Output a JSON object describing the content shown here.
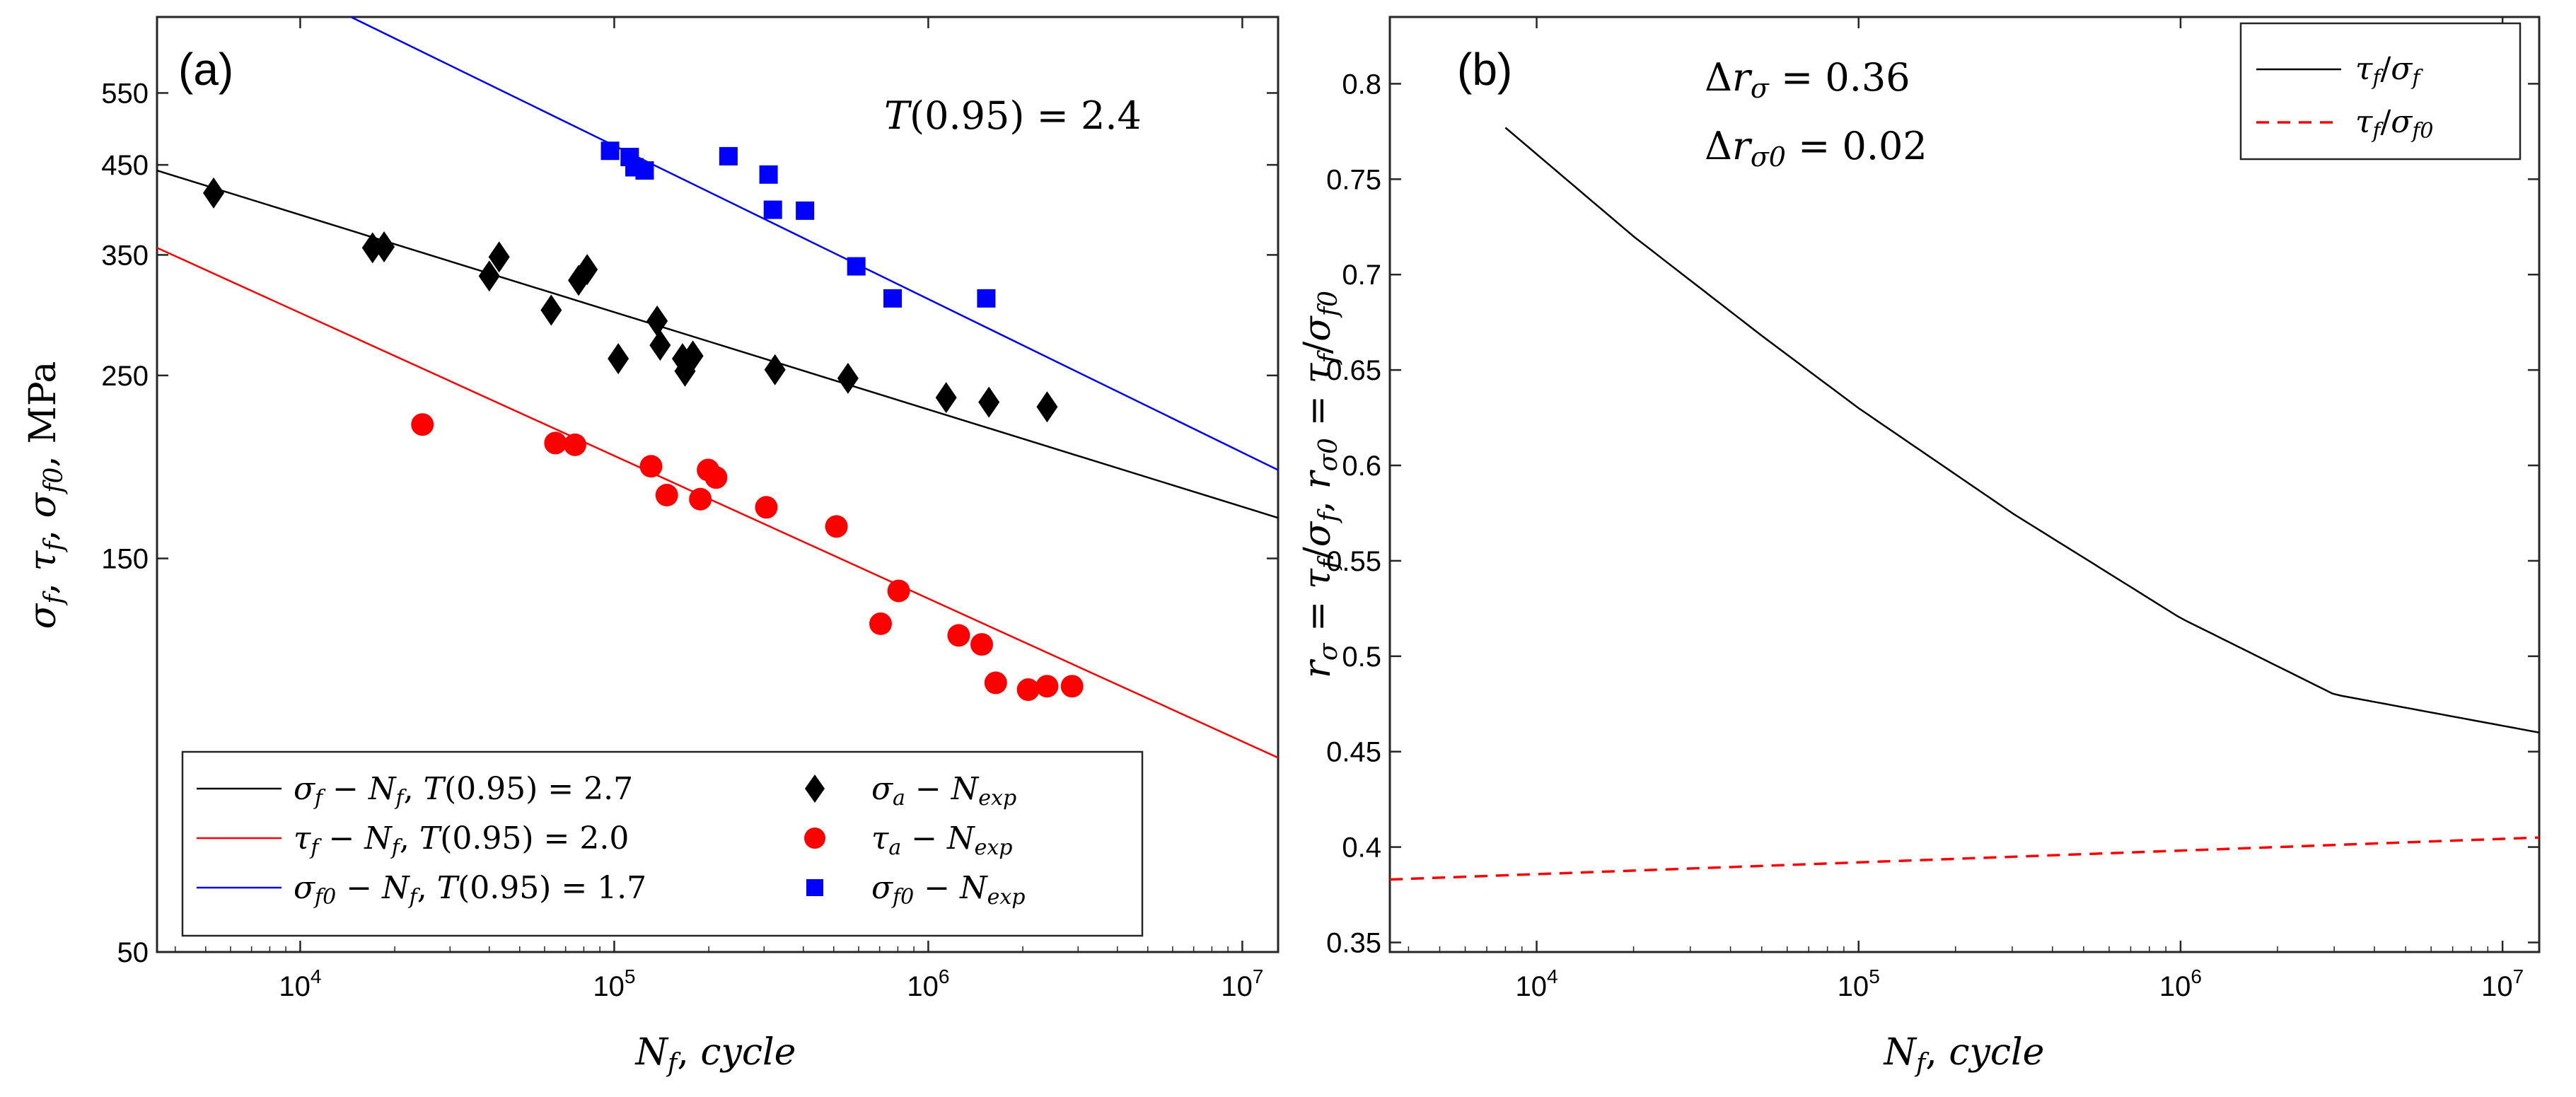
{
  "chart_data": [
    {
      "type": "scatter",
      "panel_label": "(a)",
      "xscale": "log",
      "yscale": "log",
      "xlim": [
        3500,
        13000000
      ],
      "ylim": [
        50,
        680
      ],
      "xlabel": "N_f, cycle",
      "ylabel": "σ_f, τ_f, σ_f0, MPa",
      "xticks": [
        10000,
        100000,
        1000000,
        10000000
      ],
      "xtick_labels": [
        {
          "base": "10",
          "exp": "4"
        },
        {
          "base": "10",
          "exp": "5"
        },
        {
          "base": "10",
          "exp": "6"
        },
        {
          "base": "10",
          "exp": "7"
        }
      ],
      "yticks": [
        50,
        150,
        250,
        350,
        450,
        550
      ],
      "ytick_labels": [
        "50",
        "150",
        "250",
        "350",
        "450",
        "550"
      ],
      "annotation": "T(0.95) = 2.4",
      "legend_position": "lower-left",
      "legend": [
        {
          "label": "σ_f − N_f, T(0.95) = 2.7",
          "color": "#000000",
          "marker": "line"
        },
        {
          "label": "σ_a − N_exp",
          "color": "#000000",
          "marker": "diamond"
        },
        {
          "label": "τ_f − N_f, T(0.95) = 2.0",
          "color": "#ff0000",
          "marker": "line"
        },
        {
          "label": "τ_a − N_exp",
          "color": "#ff0000",
          "marker": "circle"
        },
        {
          "label": "σ_f0 − N_f, T(0.95) = 1.7",
          "color": "#0000ff",
          "marker": "line"
        },
        {
          "label": "σ_f0 − N_exp",
          "color": "#0000ff",
          "marker": "square"
        }
      ],
      "fit_lines": [
        {
          "name": "σ_f − N_f",
          "color": "#000000",
          "x": [
            3500,
            13000000
          ],
          "y": [
            443,
            168
          ]
        },
        {
          "name": "τ_f − N_f",
          "color": "#ff0000",
          "x": [
            3500,
            13000000
          ],
          "y": [
            357,
            86
          ]
        },
        {
          "name": "σ_f0 − N_f",
          "color": "#0000ff",
          "x": [
            14500,
            13000000
          ],
          "y": [
            680,
            192
          ]
        }
      ],
      "series": [
        {
          "name": "σ_a − N_exp",
          "marker": "diamond",
          "color": "#000000",
          "x": [
            5300,
            17000,
            18500,
            40000,
            43000,
            63000,
            77000,
            82000,
            103000,
            137000,
            140000,
            165000,
            168000,
            178000,
            325000,
            555000,
            1140000,
            1560000,
            2390000
          ],
          "y": [
            416,
            357,
            358,
            330,
            348,
            300,
            326,
            336,
            262,
            291,
            272,
            262,
            253,
            264,
            254,
            248,
            235,
            232,
            229
          ]
        },
        {
          "name": "τ_a − N_exp",
          "marker": "circle",
          "color": "#ff0000",
          "x": [
            24500,
            65000,
            75000,
            131000,
            147000,
            188000,
            199000,
            211000,
            305000,
            510000,
            705000,
            805000,
            1250000,
            1480000,
            1640000,
            2080000,
            2390000,
            2870000
          ],
          "y": [
            218,
            207,
            206,
            194,
            179,
            177,
            192,
            188,
            173,
            164,
            125,
            137,
            121,
            118,
            106,
            104,
            105,
            105
          ]
        },
        {
          "name": "σ_f0 − N_exp",
          "marker": "square",
          "color": "#0000ff",
          "x": [
            97000,
            112000,
            116000,
            125000,
            231000,
            310000,
            320000,
            405000,
            590000,
            770000,
            1530000
          ],
          "y": [
            468,
            460,
            447,
            443,
            461,
            438,
            397,
            396,
            339,
            310,
            310
          ]
        }
      ]
    },
    {
      "type": "line",
      "panel_label": "(b)",
      "xscale": "log",
      "yscale": "linear",
      "xlim": [
        3500,
        13000000
      ],
      "ylim": [
        0.345,
        0.835
      ],
      "xlabel": "N_f, cycle",
      "ylabel": "r_σ = τ_f/σ_f, r_σ0 = τ_f/σ_f0",
      "xticks": [
        10000,
        100000,
        1000000,
        10000000
      ],
      "xtick_labels": [
        {
          "base": "10",
          "exp": "4"
        },
        {
          "base": "10",
          "exp": "5"
        },
        {
          "base": "10",
          "exp": "6"
        },
        {
          "base": "10",
          "exp": "7"
        }
      ],
      "yticks": [
        0.35,
        0.4,
        0.45,
        0.5,
        0.55,
        0.6,
        0.65,
        0.7,
        0.75,
        0.8
      ],
      "ytick_labels": [
        "0.35",
        "0.4",
        "0.45",
        "0.5",
        "0.55",
        "0.6",
        "0.65",
        "0.7",
        "0.75",
        "0.8"
      ],
      "annotations": [
        "Δr_σ = 0.36",
        "Δr_σ0 = 0.02"
      ],
      "legend_position": "top-right",
      "legend": [
        {
          "label": "τ_f/σ_f",
          "color": "#000000",
          "style": "solid"
        },
        {
          "label": "τ_f/σ_f0",
          "color": "#ff0000",
          "style": "dashed"
        }
      ],
      "series": [
        {
          "name": "τ_f/σ_f",
          "color": "#000000",
          "style": "solid",
          "x": [
            8000,
            20000,
            50000,
            100000,
            300000,
            1000000,
            3000000,
            13000000
          ],
          "y": [
            0.777,
            0.72,
            0.668,
            0.63,
            0.575,
            0.52,
            0.48,
            0.46
          ]
        },
        {
          "name": "τ_f/σ_f0",
          "color": "#ff0000",
          "style": "dashed",
          "x": [
            3500,
            13000000
          ],
          "y": [
            0.383,
            0.405
          ]
        }
      ]
    }
  ]
}
